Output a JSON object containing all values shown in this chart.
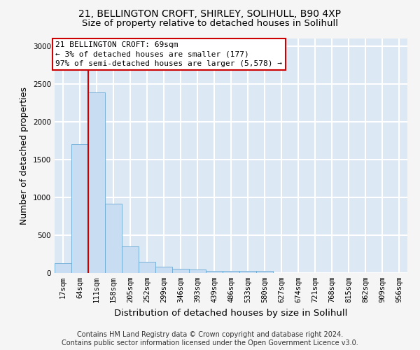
{
  "title_line1": "21, BELLINGTON CROFT, SHIRLEY, SOLIHULL, B90 4XP",
  "title_line2": "Size of property relative to detached houses in Solihull",
  "xlabel": "Distribution of detached houses by size in Solihull",
  "ylabel": "Number of detached properties",
  "categories": [
    "17sqm",
    "64sqm",
    "111sqm",
    "158sqm",
    "205sqm",
    "252sqm",
    "299sqm",
    "346sqm",
    "393sqm",
    "439sqm",
    "486sqm",
    "533sqm",
    "580sqm",
    "627sqm",
    "674sqm",
    "721sqm",
    "768sqm",
    "815sqm",
    "862sqm",
    "909sqm",
    "956sqm"
  ],
  "values": [
    130,
    1700,
    2390,
    920,
    355,
    145,
    85,
    55,
    45,
    30,
    25,
    25,
    25,
    0,
    0,
    0,
    0,
    0,
    0,
    0,
    0
  ],
  "bar_color": "#c8ddf2",
  "bar_edge_color": "#6aaad4",
  "red_line_x": 1.5,
  "red_line_color": "#cc0000",
  "annotation_text": "21 BELLINGTON CROFT: 69sqm\n← 3% of detached houses are smaller (177)\n97% of semi-detached houses are larger (5,578) →",
  "annotation_box_edgecolor": "#cc0000",
  "ylim": [
    0,
    3100
  ],
  "yticks": [
    0,
    500,
    1000,
    1500,
    2000,
    2500,
    3000
  ],
  "background_color": "#dde8f5",
  "grid_color": "#ffffff",
  "fig_bg_color": "#f5f5f5",
  "title_fontsize": 10,
  "subtitle_fontsize": 9.5,
  "ylabel_fontsize": 9,
  "xlabel_fontsize": 9.5,
  "tick_fontsize": 7.5,
  "annotation_fontsize": 8,
  "footer_fontsize": 7,
  "footer_line1": "Contains HM Land Registry data © Crown copyright and database right 2024.",
  "footer_line2": "Contains public sector information licensed under the Open Government Licence v3.0."
}
